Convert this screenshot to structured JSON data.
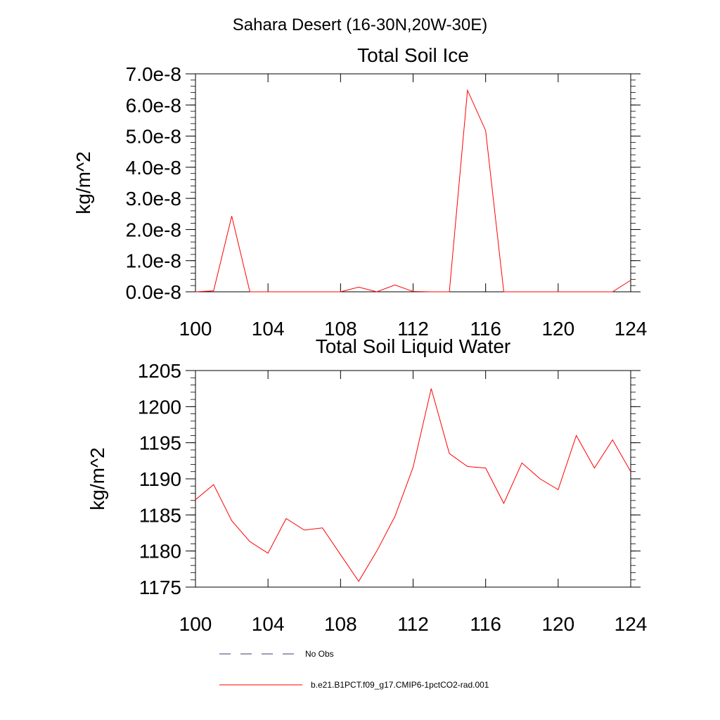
{
  "figure": {
    "title": "Sahara Desert (16-30N,20W-30E)"
  },
  "colors": {
    "series": "#ff0000",
    "obs": "#3b3b6b",
    "axes": "#000000"
  },
  "legend": {
    "placement": "bottom-left",
    "entries": [
      {
        "label": "No Obs",
        "style": "dashed"
      },
      {
        "label": "b.e21.B1PCT.f09_g17.CMIP6-1pctCO2-rad.001",
        "style": "solid"
      }
    ]
  },
  "chart_data": [
    {
      "type": "line",
      "title": "Total Soil Ice",
      "xlabel": "",
      "ylabel": "kg/m^2",
      "xlim": [
        100,
        124
      ],
      "ylim": [
        0,
        7e-08
      ],
      "xticks": [
        100,
        104,
        108,
        112,
        116,
        120,
        124
      ],
      "xtick_labels": [
        "100",
        "104",
        "108",
        "112",
        "116",
        "120",
        "124"
      ],
      "yticks": [
        0,
        1e-08,
        2e-08,
        3e-08,
        4e-08,
        5e-08,
        6e-08,
        7e-08
      ],
      "ytick_labels": [
        "0.0e-8",
        "1.0e-8",
        "2.0e-8",
        "3.0e-8",
        "4.0e-8",
        "5.0e-8",
        "6.0e-8",
        "7.0e-8"
      ],
      "grid": false,
      "series": [
        {
          "x": [
            100,
            101,
            102,
            103,
            104,
            105,
            106,
            107,
            108,
            109,
            110,
            111,
            112,
            113,
            114,
            115,
            116,
            117,
            118,
            119,
            120,
            121,
            122,
            123,
            124
          ],
          "values": [
            0,
            3e-10,
            2.43e-08,
            0,
            0,
            0,
            0,
            0,
            0,
            1.5e-09,
            0,
            2.2e-09,
            1e-10,
            0,
            0,
            6.47e-08,
            5.18e-08,
            0,
            0,
            0,
            0,
            0,
            0,
            0,
            3.7e-09
          ]
        }
      ]
    },
    {
      "type": "line",
      "title": "Total Soil Liquid Water",
      "xlabel": "",
      "ylabel": "kg/m^2",
      "xlim": [
        100,
        124
      ],
      "ylim": [
        1175,
        1205
      ],
      "xticks": [
        100,
        104,
        108,
        112,
        116,
        120,
        124
      ],
      "xtick_labels": [
        "100",
        "104",
        "108",
        "112",
        "116",
        "120",
        "124"
      ],
      "yticks": [
        1175,
        1180,
        1185,
        1190,
        1195,
        1200,
        1205
      ],
      "ytick_labels": [
        "1175",
        "1180",
        "1185",
        "1190",
        "1195",
        "1200",
        "1205"
      ],
      "grid": false,
      "series": [
        {
          "x": [
            100,
            101,
            102,
            103,
            104,
            105,
            106,
            107,
            108,
            109,
            110,
            111,
            112,
            113,
            114,
            115,
            116,
            117,
            118,
            119,
            120,
            121,
            122,
            123,
            124
          ],
          "values": [
            1187.1,
            1189.2,
            1184.2,
            1181.3,
            1179.7,
            1184.5,
            1182.9,
            1183.2,
            1179.5,
            1175.8,
            1180.0,
            1184.8,
            1191.6,
            1202.5,
            1193.5,
            1191.7,
            1191.5,
            1186.6,
            1192.2,
            1190.0,
            1188.5,
            1196.0,
            1191.5,
            1195.4,
            1191.0
          ]
        }
      ]
    }
  ]
}
